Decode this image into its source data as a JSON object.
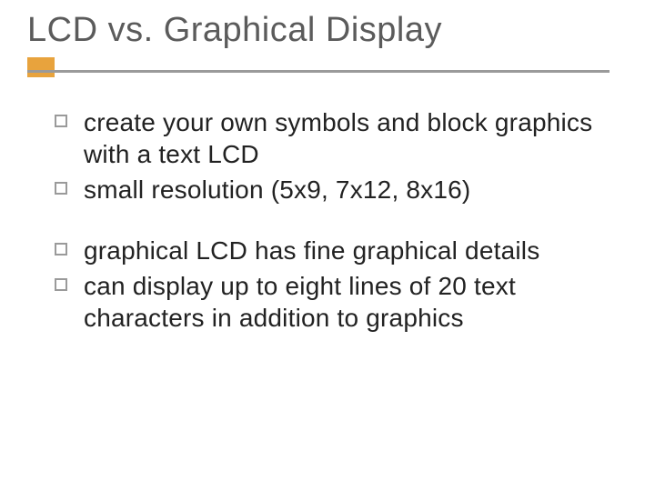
{
  "slide": {
    "title": "LCD vs. Graphical Display",
    "title_color": "#5b5b5b",
    "title_fontsize": 38,
    "accent_color": "#e8a33d",
    "underline_color": "#9a9a9a",
    "bullet_border_color": "#9a9a9a",
    "body_color": "#222222",
    "body_fontsize": 28,
    "background_color": "#ffffff",
    "groups": [
      {
        "items": [
          "create your own symbols and block graphics with a text LCD",
          "small resolution (5x9, 7x12, 8x16)"
        ]
      },
      {
        "items": [
          "graphical LCD has fine graphical details",
          "can display up to eight lines of 20 text characters in addition to graphics"
        ]
      }
    ]
  }
}
